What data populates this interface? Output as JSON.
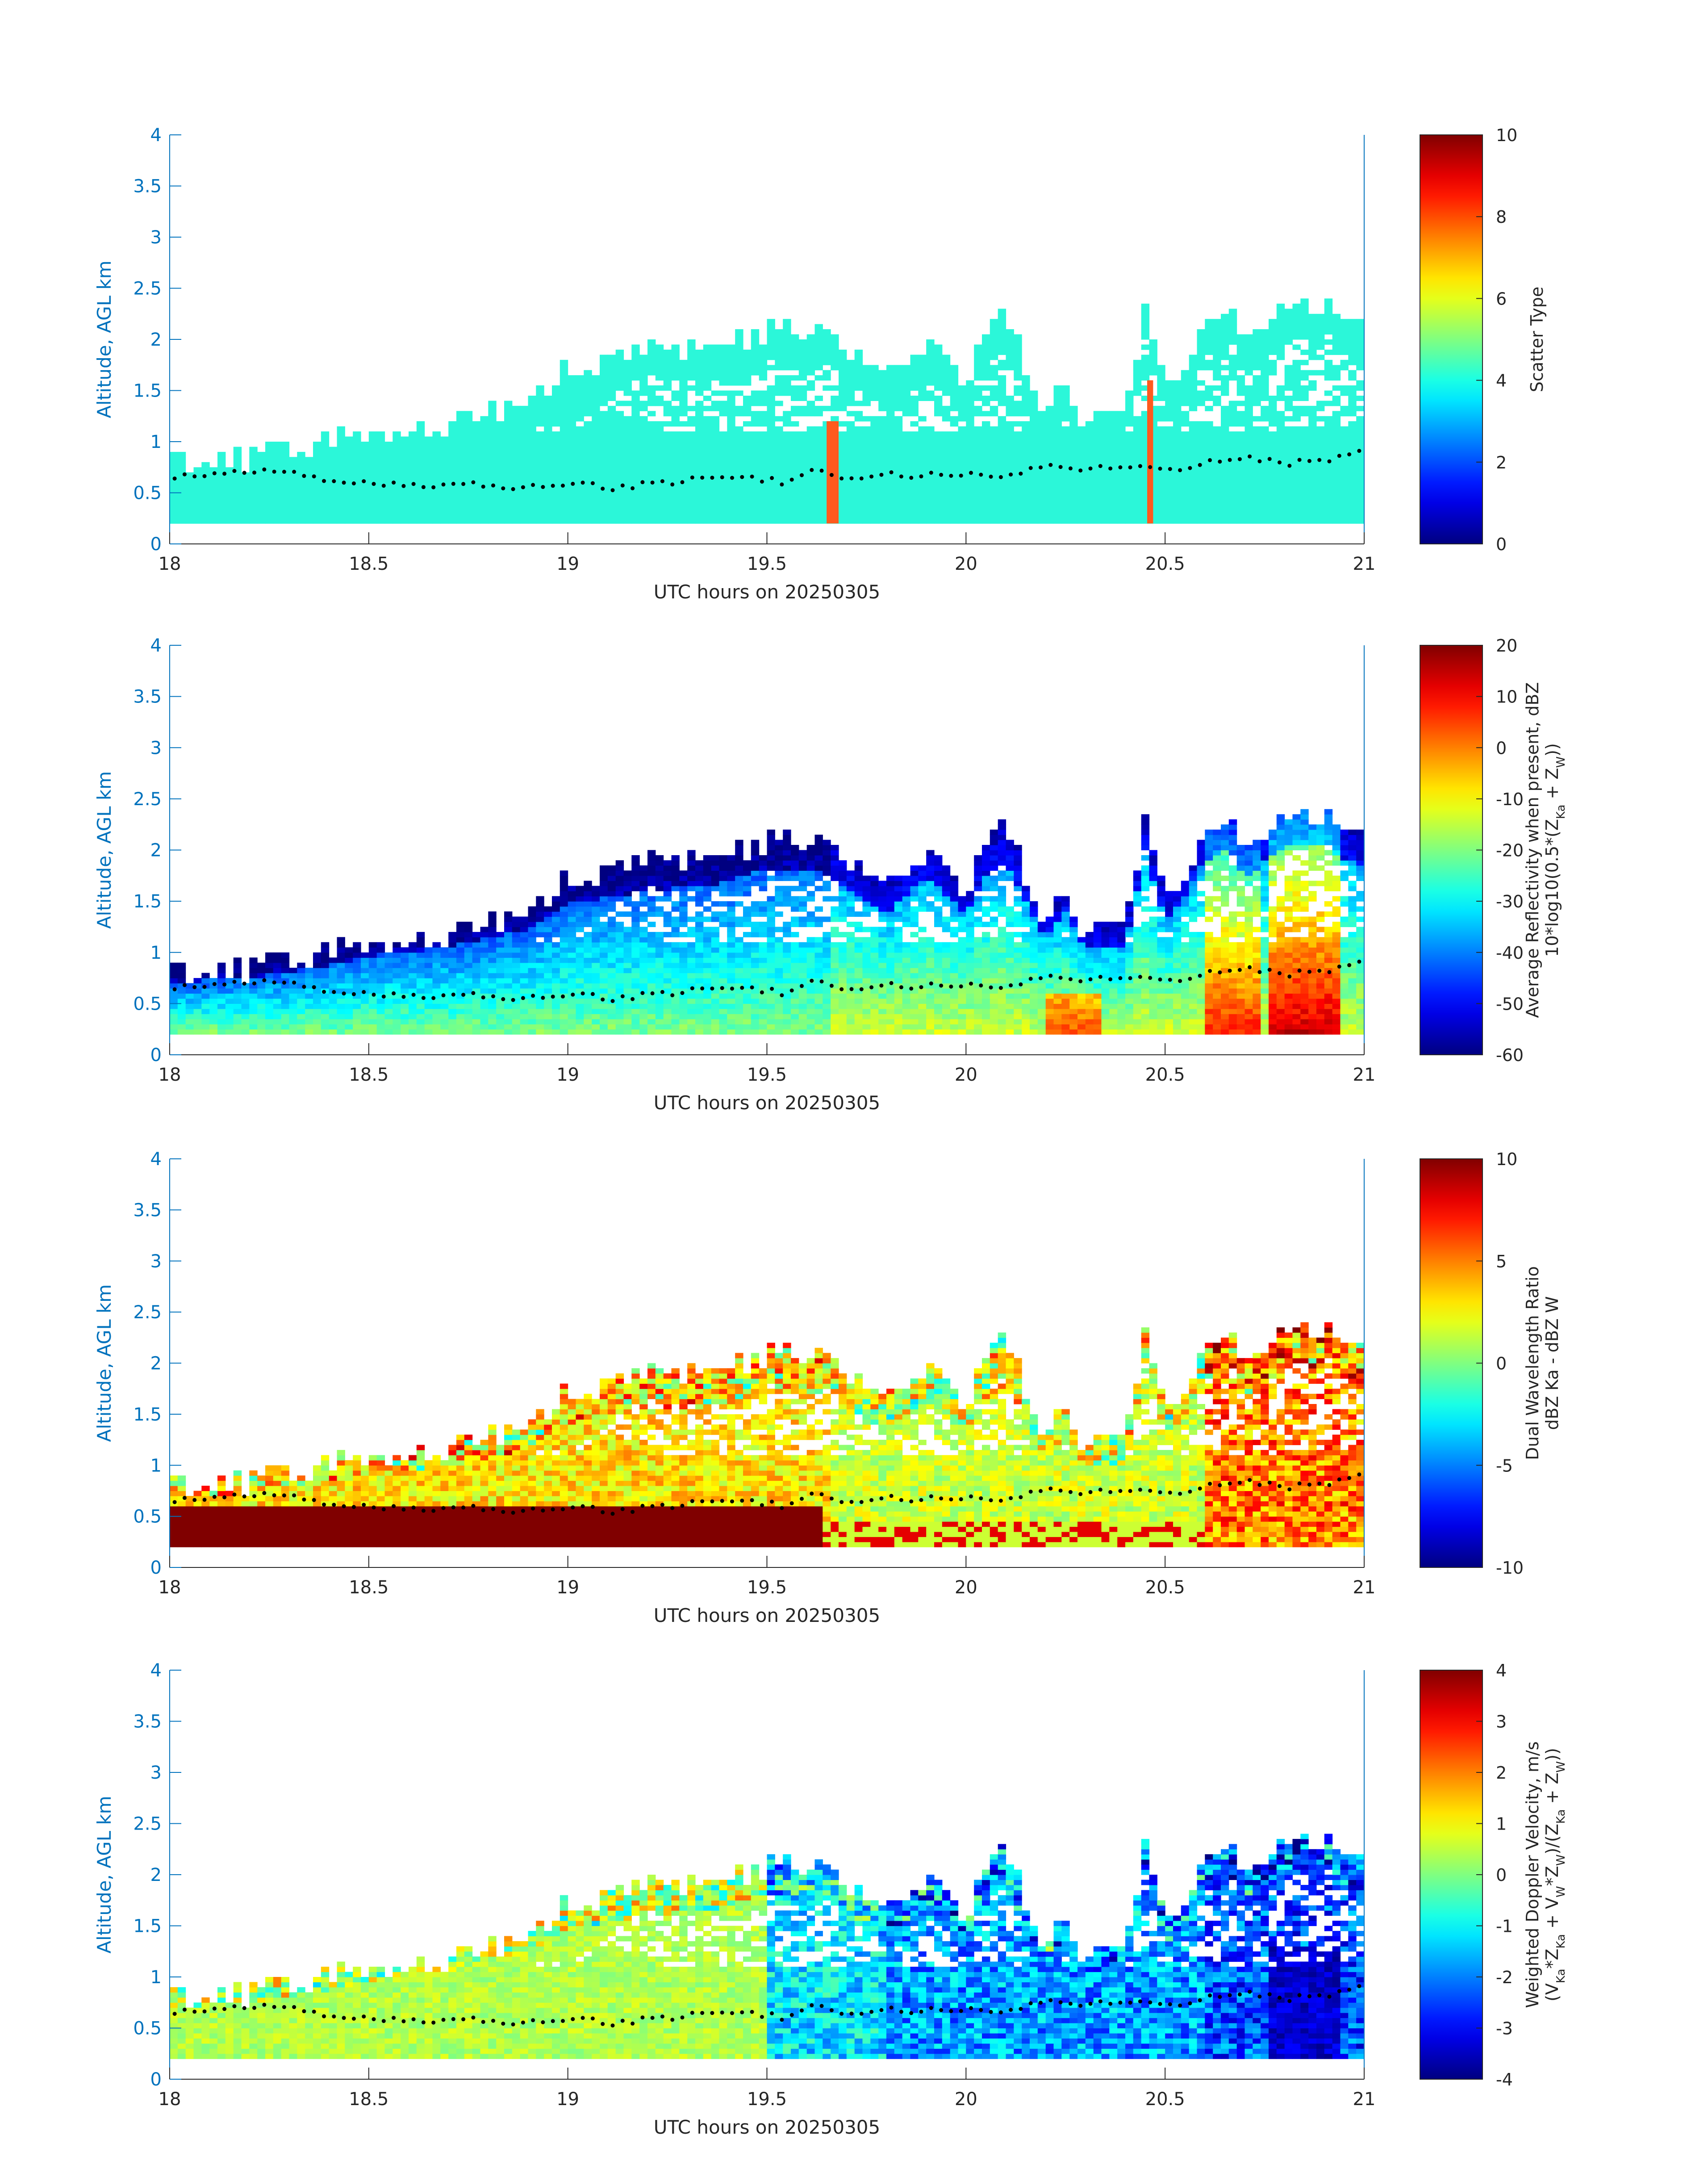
{
  "figure": {
    "colors": {
      "axis": "#0072BD",
      "text": "#262626",
      "background": "#ffffff",
      "marker": "#000000"
    },
    "colormap": "jet",
    "x_axis": {
      "label": "UTC hours on 20250305",
      "range": [
        18,
        21
      ],
      "ticks": [
        18,
        18.5,
        19,
        19.5,
        20,
        20.5,
        21
      ],
      "tick_labels": [
        "18",
        "18.5",
        "19",
        "19.5",
        "20",
        "20.5",
        "21"
      ]
    },
    "y_axis": {
      "label": "Altitude, AGL km",
      "range": [
        0,
        4
      ],
      "ticks": [
        0,
        0.5,
        1,
        1.5,
        2,
        2.5,
        3,
        3.5,
        4
      ],
      "tick_labels": [
        "0",
        "0.5",
        "1",
        "1.5",
        "2",
        "2.5",
        "3",
        "3.5",
        "4"
      ]
    },
    "cloud_base_markers": "black dots"
  },
  "chart_data": [
    {
      "type": "heatmap",
      "x_range": [
        18,
        21
      ],
      "y_range": [
        0,
        4
      ],
      "xlabel": "UTC hours on 20250305",
      "ylabel": "Altitude, AGL km",
      "colorbar": {
        "label_lines": [
          "Scatter Type"
        ],
        "range": [
          0,
          10
        ],
        "ticks": [
          0,
          2,
          4,
          6,
          8,
          10
        ],
        "tick_labels": [
          "0",
          "2",
          "4",
          "6",
          "8",
          "10"
        ]
      },
      "dominant_value": 4,
      "dominant_color": "#2BF7D9",
      "special_columns": [
        {
          "time_start": 19.65,
          "time_end": 19.68,
          "alt_top": 1.2,
          "value": 8.7,
          "color": "#FF5A1E"
        },
        {
          "time_start": 20.455,
          "time_end": 20.47,
          "alt_top": 1.6,
          "value": 8.7,
          "color": "#FF5A1E"
        }
      ]
    },
    {
      "type": "heatmap",
      "x_range": [
        18,
        21
      ],
      "y_range": [
        0,
        4
      ],
      "xlabel": "UTC hours on 20250305",
      "ylabel": "Altitude, AGL km",
      "colorbar": {
        "label_lines": [
          "Average Reflectivity when present, dBZ",
          "10*log10(0.5*(Z_Ka + Z_W))"
        ],
        "range": [
          -60,
          20
        ],
        "ticks": [
          -60,
          -50,
          -40,
          -30,
          -20,
          -10,
          0,
          10,
          20
        ],
        "tick_labels": [
          "-60",
          "-50",
          "-40",
          "-30",
          "-20",
          "-10",
          "0",
          "10",
          "20"
        ]
      }
    },
    {
      "type": "heatmap",
      "x_range": [
        18,
        21
      ],
      "y_range": [
        0,
        4
      ],
      "xlabel": "UTC hours on 20250305",
      "ylabel": "Altitude, AGL km",
      "colorbar": {
        "label_lines": [
          "Dual Wavelength Ratio",
          "dBZ Ka - dBZ W"
        ],
        "range": [
          -10,
          10
        ],
        "ticks": [
          -10,
          -5,
          0,
          5,
          10
        ],
        "tick_labels": [
          "-10",
          "-5",
          "0",
          "5",
          "10"
        ]
      }
    },
    {
      "type": "heatmap",
      "x_range": [
        18,
        21
      ],
      "y_range": [
        0,
        4
      ],
      "xlabel": "UTC hours on 20250305",
      "ylabel": "Altitude, AGL km",
      "colorbar": {
        "label_lines": [
          "Weighted Doppler Velocity, m/s",
          "(V_Ka*Z_Ka + V_W*Z_W)/(Z_Ka + Z_W))"
        ],
        "range": [
          -4,
          4
        ],
        "ticks": [
          -4,
          -3,
          -2,
          -1,
          0,
          1,
          2,
          3,
          4
        ],
        "tick_labels": [
          "-4",
          "-3",
          "-2",
          "-1",
          "0",
          "1",
          "2",
          "3",
          "4"
        ]
      }
    }
  ],
  "echo_top_profile": {
    "times": [
      18.0,
      18.2,
      18.35,
      18.5,
      18.7,
      18.9,
      19.0,
      19.2,
      19.4,
      19.5,
      19.6,
      19.65,
      19.7,
      19.8,
      19.9,
      20.0,
      20.05,
      20.1,
      20.2,
      20.25,
      20.3,
      20.4,
      20.45,
      20.5,
      20.55,
      20.6,
      20.65,
      20.7,
      20.8,
      20.9,
      21.0
    ],
    "tops_km": [
      0.8,
      0.85,
      0.95,
      1.1,
      1.2,
      1.4,
      1.7,
      1.85,
      1.95,
      2.1,
      2.1,
      2.05,
      1.9,
      1.6,
      2.0,
      1.6,
      2.0,
      2.2,
      1.3,
      1.6,
      1.2,
      1.2,
      2.3,
      1.5,
      1.8,
      2.2,
      2.3,
      2.0,
      2.35,
      2.35,
      2.1
    ],
    "base_km": 0.2
  },
  "cloud_base_markers": {
    "times": [
      18.0,
      18.1,
      18.2,
      18.3,
      18.35,
      18.4,
      18.5,
      18.6,
      18.7,
      18.8,
      18.9,
      19.0,
      19.05,
      19.1,
      19.2,
      19.3,
      19.4,
      19.5,
      19.55,
      19.6,
      19.7,
      19.8,
      19.9,
      20.0,
      20.1,
      20.2,
      20.3,
      20.4,
      20.5,
      20.6,
      20.7,
      20.8,
      20.9,
      21.0
    ],
    "alt_km": [
      0.65,
      0.66,
      0.7,
      0.72,
      0.65,
      0.62,
      0.6,
      0.58,
      0.58,
      0.57,
      0.55,
      0.56,
      0.62,
      0.55,
      0.58,
      0.62,
      0.68,
      0.62,
      0.6,
      0.72,
      0.66,
      0.67,
      0.68,
      0.7,
      0.68,
      0.75,
      0.72,
      0.76,
      0.72,
      0.8,
      0.85,
      0.78,
      0.82,
      0.9
    ]
  }
}
